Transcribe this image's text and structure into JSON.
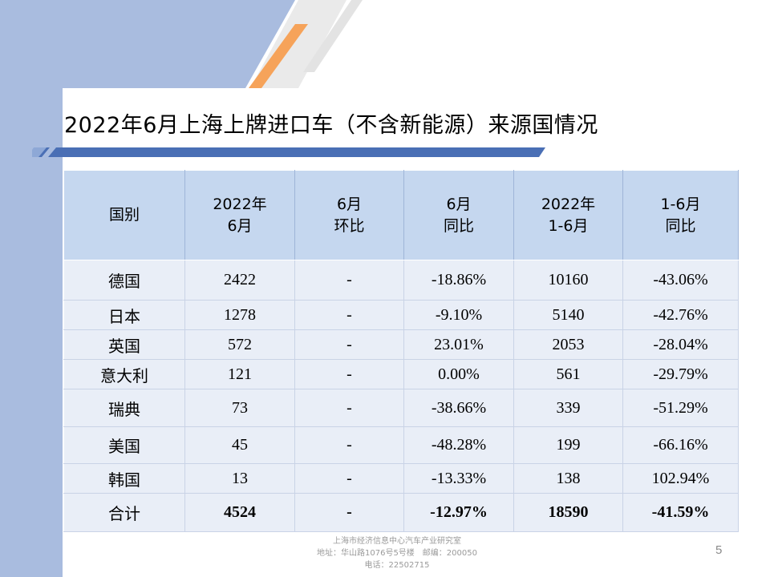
{
  "slide": {
    "title": "2022年6月上海上牌进口车（不含新能源）来源国情况",
    "page_number": "5"
  },
  "table": {
    "headers": [
      [
        "国别"
      ],
      [
        "2022年",
        "6月"
      ],
      [
        "6月",
        "环比"
      ],
      [
        "6月",
        "同比"
      ],
      [
        "2022年",
        "1-6月"
      ],
      [
        "1-6月",
        "同比"
      ]
    ],
    "rows": [
      [
        "德国",
        "2422",
        "-",
        "-18.86%",
        "10160",
        "-43.06%"
      ],
      [
        "日本",
        "1278",
        "-",
        "-9.10%",
        "5140",
        "-42.76%"
      ],
      [
        "英国",
        "572",
        "-",
        "23.01%",
        "2053",
        "-28.04%"
      ],
      [
        "意大利",
        "121",
        "-",
        "0.00%",
        "561",
        "-29.79%"
      ],
      [
        "瑞典",
        "73",
        "-",
        "-38.66%",
        "339",
        "-51.29%"
      ],
      [
        "美国",
        "45",
        "-",
        "-48.28%",
        "199",
        "-66.16%"
      ],
      [
        "韩国",
        "13",
        "-",
        "-13.33%",
        "138",
        "102.94%"
      ]
    ],
    "total": [
      "合计",
      "4524",
      "-",
      "-12.97%",
      "18590",
      "-41.59%"
    ]
  },
  "footer": {
    "line1": "上海市经济信息中心汽车产业研究室",
    "line2": "地址：华山路1076号5号楼　邮编：200050",
    "line3": "电话：22502715"
  },
  "colors": {
    "sidebar": "#a9bcdf",
    "header_bg": "#c5d7ef",
    "row_bg": "#e9eef7",
    "accent_orange": "#f4a460",
    "accent_blue": "#4a6fb5"
  }
}
